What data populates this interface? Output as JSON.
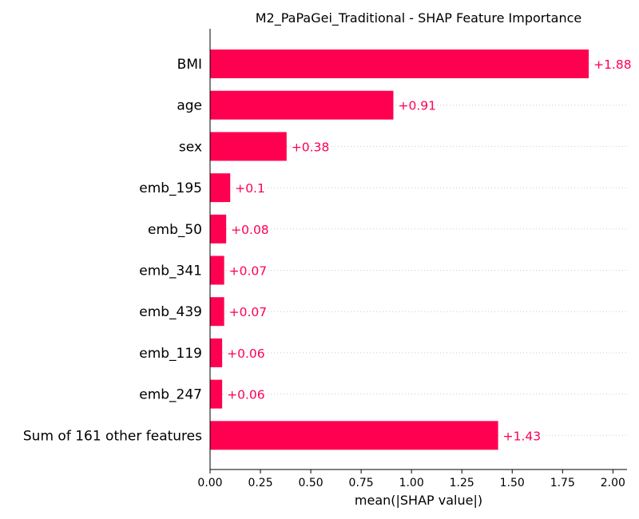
{
  "chart_data": {
    "type": "bar",
    "orientation": "horizontal",
    "title": "M2_PaPaGei_Traditional - SHAP Feature Importance",
    "xlabel": "mean(|SHAP value|)",
    "ylabel": "",
    "categories": [
      "BMI",
      "age",
      "sex",
      "emb_195",
      "emb_50",
      "emb_341",
      "emb_439",
      "emb_119",
      "emb_247",
      "Sum of 161 other features"
    ],
    "values": [
      1.88,
      0.91,
      0.38,
      0.1,
      0.08,
      0.07,
      0.07,
      0.06,
      0.06,
      1.43
    ],
    "value_labels": [
      "+1.88",
      "+0.91",
      "+0.38",
      "+0.1",
      "+0.08",
      "+0.07",
      "+0.07",
      "+0.06",
      "+0.06",
      "+1.43"
    ],
    "xlim": [
      0,
      2.07
    ],
    "xticks": [
      0.0,
      0.25,
      0.5,
      0.75,
      1.0,
      1.25,
      1.5,
      1.75,
      2.0
    ],
    "xtick_labels": [
      "0.00",
      "0.25",
      "0.50",
      "0.75",
      "1.00",
      "1.25",
      "1.50",
      "1.75",
      "2.00"
    ],
    "grid": "dotted horizontal guide lines per row",
    "bar_color": "#ff0051",
    "label_color": "#ff0051",
    "legend": "none"
  }
}
